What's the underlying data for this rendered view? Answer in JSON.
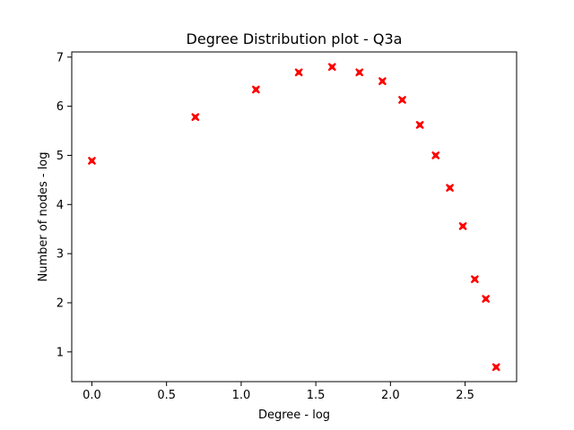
{
  "chart_data": {
    "type": "scatter",
    "title": "Degree Distribution plot - Q3a",
    "xlabel": "Degree - log",
    "ylabel": "Number of nodes - log",
    "xlim": [
      -0.135,
      2.845
    ],
    "ylim": [
      0.395,
      7.105
    ],
    "xticks": [
      0.0,
      0.5,
      1.0,
      1.5,
      2.0,
      2.5
    ],
    "xtick_labels": [
      "0.0",
      "0.5",
      "1.0",
      "1.5",
      "2.0",
      "2.5"
    ],
    "yticks": [
      1,
      2,
      3,
      4,
      5,
      6,
      7
    ],
    "ytick_labels": [
      "1",
      "2",
      "3",
      "4",
      "5",
      "6",
      "7"
    ],
    "grid": false,
    "legend": "none",
    "marker": "X",
    "marker_color": "#ff0000",
    "points": [
      {
        "x": 0.0,
        "y": 4.89
      },
      {
        "x": 0.693,
        "y": 5.78
      },
      {
        "x": 1.099,
        "y": 6.34
      },
      {
        "x": 1.386,
        "y": 6.69
      },
      {
        "x": 1.609,
        "y": 6.8
      },
      {
        "x": 1.792,
        "y": 6.69
      },
      {
        "x": 1.946,
        "y": 6.51
      },
      {
        "x": 2.079,
        "y": 6.13
      },
      {
        "x": 2.197,
        "y": 5.62
      },
      {
        "x": 2.303,
        "y": 5.0
      },
      {
        "x": 2.398,
        "y": 4.34
      },
      {
        "x": 2.485,
        "y": 3.56
      },
      {
        "x": 2.565,
        "y": 2.48
      },
      {
        "x": 2.639,
        "y": 2.08
      },
      {
        "x": 2.708,
        "y": 0.69
      }
    ]
  }
}
